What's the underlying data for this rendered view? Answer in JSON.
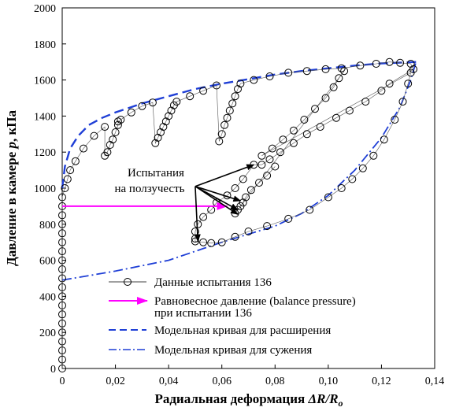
{
  "chart_data": {
    "type": "scatter",
    "xlabel_main": "Радиальная деформация ",
    "xlabel_var": "ΔR/R",
    "xlabel_sub": "o",
    "ylabel_main": "Давление в камере ",
    "ylabel_var": "p",
    "ylabel_unit": ", кПа",
    "xlim": [
      0,
      0.14
    ],
    "ylim": [
      0,
      2000
    ],
    "x_ticks": [
      {
        "value": 0,
        "label": "0"
      },
      {
        "value": 0.02,
        "label": "0,02"
      },
      {
        "value": 0.04,
        "label": "0,04"
      },
      {
        "value": 0.06,
        "label": "0,06"
      },
      {
        "value": 0.08,
        "label": "0,08"
      },
      {
        "value": 0.1,
        "label": "0,10"
      },
      {
        "value": 0.12,
        "label": "0,12"
      },
      {
        "value": 0.14,
        "label": "0,14"
      }
    ],
    "y_ticks": [
      {
        "value": 0,
        "label": "0"
      },
      {
        "value": 200,
        "label": "200"
      },
      {
        "value": 400,
        "label": "400"
      },
      {
        "value": 600,
        "label": "600"
      },
      {
        "value": 800,
        "label": "800"
      },
      {
        "value": 1000,
        "label": "1000"
      },
      {
        "value": 1200,
        "label": "1200"
      },
      {
        "value": 1400,
        "label": "1400"
      },
      {
        "value": 1600,
        "label": "1600"
      },
      {
        "value": 1800,
        "label": "1800"
      },
      {
        "value": 2000,
        "label": "2000"
      }
    ],
    "series": [
      {
        "name": "Данные испытания 136",
        "kind": "data",
        "color": "#000000",
        "points": [
          [
            0,
            0
          ],
          [
            0,
            50
          ],
          [
            0,
            100
          ],
          [
            0,
            150
          ],
          [
            0,
            200
          ],
          [
            0,
            250
          ],
          [
            0,
            300
          ],
          [
            0,
            350
          ],
          [
            0,
            400
          ],
          [
            0,
            450
          ],
          [
            0,
            500
          ],
          [
            0,
            550
          ],
          [
            0,
            600
          ],
          [
            0,
            650
          ],
          [
            0,
            700
          ],
          [
            0,
            750
          ],
          [
            0,
            800
          ],
          [
            0,
            850
          ],
          [
            0,
            900
          ],
          [
            0,
            950
          ],
          [
            0.001,
            1000
          ],
          [
            0.002,
            1050
          ],
          [
            0.003,
            1100
          ],
          [
            0.005,
            1150
          ],
          [
            0.008,
            1220
          ],
          [
            0.012,
            1290
          ],
          [
            0.016,
            1340
          ],
          [
            0.016,
            1180
          ],
          [
            0.017,
            1200
          ],
          [
            0.018,
            1240
          ],
          [
            0.019,
            1270
          ],
          [
            0.02,
            1310
          ],
          [
            0.021,
            1350
          ],
          [
            0.021,
            1370
          ],
          [
            0.022,
            1380
          ],
          [
            0.026,
            1420
          ],
          [
            0.03,
            1455
          ],
          [
            0.034,
            1475
          ],
          [
            0.035,
            1250
          ],
          [
            0.036,
            1280
          ],
          [
            0.037,
            1310
          ],
          [
            0.038,
            1340
          ],
          [
            0.039,
            1370
          ],
          [
            0.04,
            1400
          ],
          [
            0.041,
            1430
          ],
          [
            0.042,
            1460
          ],
          [
            0.043,
            1480
          ],
          [
            0.048,
            1510
          ],
          [
            0.053,
            1540
          ],
          [
            0.058,
            1570
          ],
          [
            0.059,
            1260
          ],
          [
            0.06,
            1300
          ],
          [
            0.061,
            1350
          ],
          [
            0.062,
            1390
          ],
          [
            0.063,
            1430
          ],
          [
            0.064,
            1470
          ],
          [
            0.065,
            1510
          ],
          [
            0.066,
            1550
          ],
          [
            0.067,
            1580
          ],
          [
            0.072,
            1600
          ],
          [
            0.078,
            1620
          ],
          [
            0.085,
            1640
          ],
          [
            0.092,
            1650
          ],
          [
            0.099,
            1660
          ],
          [
            0.105,
            1665
          ],
          [
            0.112,
            1680
          ],
          [
            0.118,
            1690
          ],
          [
            0.123,
            1700
          ],
          [
            0.127,
            1695
          ],
          [
            0.131,
            1690
          ],
          [
            0.132,
            1660
          ],
          [
            0.123,
            1580
          ],
          [
            0.12,
            1540
          ],
          [
            0.114,
            1480
          ],
          [
            0.108,
            1430
          ],
          [
            0.103,
            1390
          ],
          [
            0.097,
            1340
          ],
          [
            0.092,
            1300
          ],
          [
            0.087,
            1250
          ],
          [
            0.082,
            1200
          ],
          [
            0.078,
            1160
          ],
          [
            0.075,
            1130
          ],
          [
            0.072,
            1130
          ],
          [
            0.068,
            1050
          ],
          [
            0.065,
            1000
          ],
          [
            0.062,
            960
          ],
          [
            0.058,
            920
          ],
          [
            0.056,
            880
          ],
          [
            0.053,
            840
          ],
          [
            0.051,
            800
          ],
          [
            0.05,
            760
          ],
          [
            0.05,
            720
          ],
          [
            0.05,
            705
          ],
          [
            0.053,
            700
          ],
          [
            0.056,
            695
          ],
          [
            0.06,
            700
          ],
          [
            0.065,
            730
          ],
          [
            0.07,
            760
          ],
          [
            0.077,
            790
          ],
          [
            0.085,
            830
          ],
          [
            0.093,
            880
          ],
          [
            0.1,
            950
          ],
          [
            0.105,
            1000
          ],
          [
            0.109,
            1050
          ],
          [
            0.113,
            1110
          ],
          [
            0.117,
            1180
          ],
          [
            0.121,
            1270
          ],
          [
            0.125,
            1380
          ],
          [
            0.128,
            1480
          ],
          [
            0.13,
            1580
          ],
          [
            0.131,
            1640
          ],
          [
            0.075,
            1180
          ],
          [
            0.079,
            1220
          ],
          [
            0.083,
            1270
          ],
          [
            0.087,
            1320
          ],
          [
            0.091,
            1380
          ],
          [
            0.095,
            1440
          ],
          [
            0.099,
            1500
          ],
          [
            0.102,
            1560
          ],
          [
            0.104,
            1610
          ],
          [
            0.106,
            1650
          ],
          [
            0.065,
            860
          ],
          [
            0.066,
            880
          ],
          [
            0.067,
            900
          ],
          [
            0.068,
            920
          ],
          [
            0.069,
            950
          ],
          [
            0.071,
            990
          ],
          [
            0.074,
            1030
          ],
          [
            0.077,
            1070
          ],
          [
            0.08,
            1120
          ]
        ]
      },
      {
        "name": "Модельная кривая для расширения",
        "kind": "dashed",
        "color": "#1f3fd6",
        "points": [
          [
            0,
            1000
          ],
          [
            0.001,
            1120
          ],
          [
            0.003,
            1220
          ],
          [
            0.006,
            1290
          ],
          [
            0.01,
            1350
          ],
          [
            0.015,
            1390
          ],
          [
            0.02,
            1420
          ],
          [
            0.03,
            1470
          ],
          [
            0.04,
            1510
          ],
          [
            0.05,
            1550
          ],
          [
            0.06,
            1580
          ],
          [
            0.07,
            1605
          ],
          [
            0.08,
            1630
          ],
          [
            0.09,
            1650
          ],
          [
            0.1,
            1665
          ],
          [
            0.11,
            1680
          ],
          [
            0.12,
            1692
          ],
          [
            0.133,
            1700
          ]
        ]
      },
      {
        "name": "Модельная кривая для сужения",
        "kind": "dashdot",
        "color": "#1f3fd6",
        "points": [
          [
            0,
            490
          ],
          [
            0.02,
            540
          ],
          [
            0.04,
            600
          ],
          [
            0.06,
            700
          ],
          [
            0.07,
            745
          ],
          [
            0.08,
            790
          ],
          [
            0.09,
            860
          ],
          [
            0.1,
            960
          ],
          [
            0.11,
            1100
          ],
          [
            0.12,
            1280
          ],
          [
            0.127,
            1450
          ],
          [
            0.131,
            1600
          ],
          [
            0.133,
            1700
          ]
        ]
      },
      {
        "name": "Равновесное давление (balance pressure)",
        "name_line2": "при испытании 136",
        "kind": "arrow",
        "color": "#ff00ff",
        "points": [
          [
            0,
            900
          ],
          [
            0.062,
            900
          ]
        ]
      }
    ],
    "annotation": {
      "line1": "Испытания",
      "line2": "на ползучесть",
      "arrow_targets": [
        [
          0.072,
          1130
        ],
        [
          0.067,
          930
        ],
        [
          0.066,
          880
        ],
        [
          0.066,
          855
        ],
        [
          0.051,
          705
        ]
      ],
      "anchor": [
        0.05,
        1010
      ]
    },
    "legend_position": "bottom-right",
    "grid": false
  }
}
